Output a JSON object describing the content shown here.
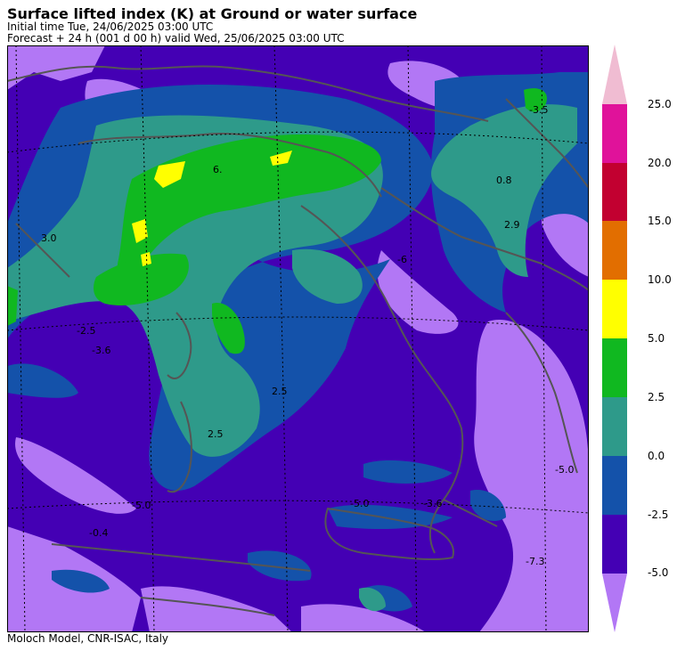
{
  "header": {
    "title": "Surface lifted index (K) at Ground or water surface",
    "initial_time": "Initial time  Tue, 24/06/2025  03:00 UTC",
    "forecast": "Forecast  +  24 h  (001 d 00 h)  valid Wed, 25/06/2025 03:00 UTC"
  },
  "footer": {
    "credit": "Moloch Model, CNR-ISAC, Italy"
  },
  "map": {
    "contour_labels": [
      {
        "id": "l1",
        "text": "-3.5"
      },
      {
        "id": "l2",
        "text": "0.8"
      },
      {
        "id": "l3",
        "text": "2.9"
      },
      {
        "id": "l4",
        "text": "6."
      },
      {
        "id": "l5",
        "text": "3.0"
      },
      {
        "id": "l6",
        "text": "-2.5"
      },
      {
        "id": "l7",
        "text": "-3.6"
      },
      {
        "id": "l8",
        "text": "-6"
      },
      {
        "id": "l9",
        "text": "2.5"
      },
      {
        "id": "l10",
        "text": "-5.0"
      },
      {
        "id": "l11",
        "text": "-0.4"
      },
      {
        "id": "l12",
        "text": "-5.0"
      },
      {
        "id": "l13",
        "text": "-3.6"
      },
      {
        "id": "l14",
        "text": "-7.3"
      },
      {
        "id": "l15",
        "text": "-5.0"
      },
      {
        "id": "l16",
        "text": "2.5"
      }
    ],
    "colors": {
      "lt_-5": "#b277f5",
      "-5_-2.5": "#4400b4",
      "-2.5_0": "#1452aa",
      "0_2.5": "#2e9a8a",
      "2.5_5": "#10b820",
      "5_10": "#ffff00",
      "coast": "#555555"
    }
  },
  "colorbar": {
    "ticks": [
      "25.0",
      "20.0",
      "15.0",
      "10.0",
      "5.0",
      "2.5",
      "0.0",
      "-2.5",
      "-5.0"
    ],
    "colors": [
      "#f0bcd2",
      "#e0129a",
      "#c20030",
      "#e26e00",
      "#ffff00",
      "#10b820",
      "#2e9a8a",
      "#1452aa",
      "#4400b4",
      "#b277f5"
    ]
  }
}
